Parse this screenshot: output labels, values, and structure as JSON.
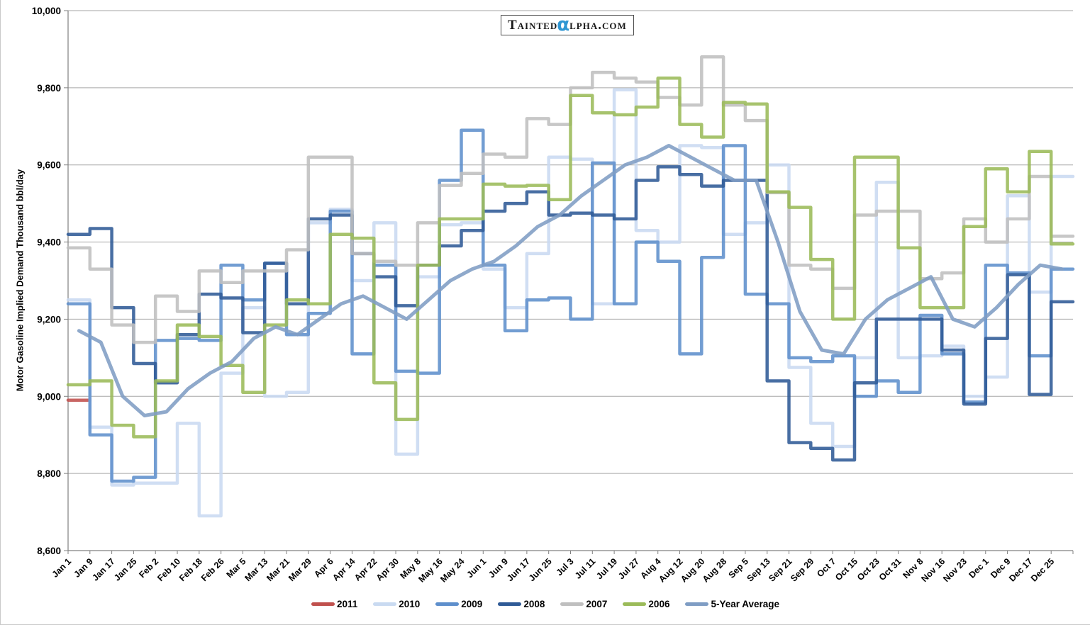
{
  "logo": {
    "part1": "Tainted",
    "alpha": "α",
    "part2": "lpha.com"
  },
  "y_axis_title": "Motor Gasoline Implied Demand Thousand bbl/day",
  "chart_data": {
    "type": "line",
    "interpolation": "step",
    "title": "",
    "xlabel": "",
    "ylabel": "Motor Gasoline Implied Demand Thousand bbl/day",
    "ylim": [
      8600,
      10000
    ],
    "ytick_step": 200,
    "ytick_labels": [
      "8,600",
      "8,800",
      "9,000",
      "9,200",
      "9,400",
      "9,600",
      "9,800",
      "10,000"
    ],
    "grid": true,
    "legend_position": "bottom",
    "categories": [
      "Jan 1",
      "Jan 9",
      "Jan 17",
      "Jan 25",
      "Feb 2",
      "Feb 10",
      "Feb 18",
      "Feb 26",
      "Mar 5",
      "Mar 13",
      "Mar 21",
      "Mar 29",
      "Apr 6",
      "Apr 14",
      "Apr 22",
      "Apr 30",
      "May 8",
      "May 16",
      "May 24",
      "Jun 1",
      "Jun 9",
      "Jun 17",
      "Jun 25",
      "Jul 3",
      "Jul 11",
      "Jul 19",
      "Jul 27",
      "Aug 4",
      "Aug 12",
      "Aug 20",
      "Aug 28",
      "Sep 5",
      "Sep 13",
      "Sep 21",
      "Sep 29",
      "Oct 7",
      "Oct 15",
      "Oct 23",
      "Oct 31",
      "Nov 8",
      "Nov 16",
      "Nov 23",
      "Dec 1",
      "Dec 9",
      "Dec 17",
      "Dec 25"
    ],
    "series": [
      {
        "name": "2011",
        "color": "#c0504d",
        "style": "step",
        "values": [
          8990,
          null,
          null,
          null,
          null,
          null,
          null,
          null,
          null,
          null,
          null,
          null,
          null,
          null,
          null,
          null,
          null,
          null,
          null,
          null,
          null,
          null,
          null,
          null,
          null,
          null,
          null,
          null,
          null,
          null,
          null,
          null,
          null,
          null,
          null,
          null,
          null,
          null,
          null,
          null,
          null,
          null,
          null,
          null,
          null,
          null
        ]
      },
      {
        "name": "2010",
        "color": "#c9daf1",
        "style": "step",
        "values": [
          9250,
          8920,
          8770,
          8775,
          8775,
          8930,
          8690,
          9060,
          9230,
          9000,
          9010,
          9450,
          9485,
          9300,
          9450,
          8850,
          9310,
          9445,
          9450,
          9330,
          9230,
          9370,
          9620,
          9615,
          9240,
          9795,
          9430,
          9400,
          9650,
          9645,
          9420,
          9450,
          9600,
          9075,
          8930,
          8870,
          9100,
          9555,
          9100,
          9105,
          9130,
          9000,
          9050,
          9520,
          9270,
          9570
        ]
      },
      {
        "name": "2009",
        "color": "#5e8fcc",
        "style": "step",
        "values": [
          9240,
          8900,
          8780,
          8790,
          9145,
          9150,
          9145,
          9340,
          9250,
          9345,
          9160,
          9215,
          9480,
          9110,
          9340,
          9065,
          9060,
          9560,
          9690,
          9340,
          9170,
          9250,
          9255,
          9200,
          9605,
          9240,
          9400,
          9350,
          9110,
          9360,
          9650,
          9265,
          9240,
          9100,
          9090,
          9105,
          9000,
          9040,
          9010,
          9210,
          9110,
          8985,
          9340,
          9320,
          9105,
          9330
        ]
      },
      {
        "name": "2008",
        "color": "#2f5a96",
        "style": "step",
        "values": [
          9420,
          9435,
          9230,
          9085,
          9035,
          9160,
          9265,
          9255,
          9165,
          9345,
          9240,
          9460,
          9470,
          9370,
          9310,
          9235,
          9340,
          9390,
          9430,
          9480,
          9500,
          9530,
          9470,
          9475,
          9470,
          9460,
          9560,
          9595,
          9575,
          9545,
          9560,
          9560,
          9040,
          8880,
          8865,
          8835,
          9035,
          9200,
          9200,
          9200,
          9120,
          8980,
          9150,
          9315,
          9005,
          9245
        ]
      },
      {
        "name": "2007",
        "color": "#bfbfbf",
        "style": "step",
        "values": [
          9385,
          9330,
          9185,
          9140,
          9260,
          9220,
          9325,
          9295,
          9325,
          9325,
          9380,
          9620,
          9620,
          9370,
          9350,
          9340,
          9450,
          9547,
          9578,
          9628,
          9620,
          9720,
          9705,
          9800,
          9840,
          9825,
          9815,
          9775,
          9755,
          9880,
          9755,
          9715,
          9528,
          9340,
          9330,
          9280,
          9470,
          9480,
          9480,
          9305,
          9320,
          9460,
          9400,
          9460,
          9570,
          9415
        ]
      },
      {
        "name": "2006",
        "color": "#9bbb59",
        "style": "step",
        "values": [
          9030,
          9040,
          8925,
          8895,
          9040,
          9185,
          9155,
          9080,
          9010,
          9185,
          9250,
          9240,
          9420,
          9410,
          9035,
          8940,
          9340,
          9460,
          9460,
          9550,
          9545,
          9547,
          9510,
          9780,
          9735,
          9730,
          9750,
          9825,
          9705,
          9672,
          9762,
          9758,
          9530,
          9490,
          9355,
          9200,
          9620,
          9620,
          9385,
          9230,
          9230,
          9440,
          9590,
          9530,
          9635,
          9395
        ]
      },
      {
        "name": "5-Year Average",
        "color": "#7f9dc4",
        "style": "smooth",
        "values": [
          9170,
          9140,
          9000,
          8950,
          8960,
          9020,
          9060,
          9090,
          9150,
          9180,
          9160,
          9200,
          9240,
          9260,
          9230,
          9200,
          9250,
          9300,
          9330,
          9350,
          9390,
          9440,
          9470,
          9520,
          9560,
          9600,
          9620,
          9650,
          9620,
          9590,
          9560,
          9560,
          9400,
          9220,
          9120,
          9110,
          9200,
          9250,
          9280,
          9310,
          9200,
          9180,
          9230,
          9290,
          9340,
          9330
        ]
      }
    ]
  }
}
